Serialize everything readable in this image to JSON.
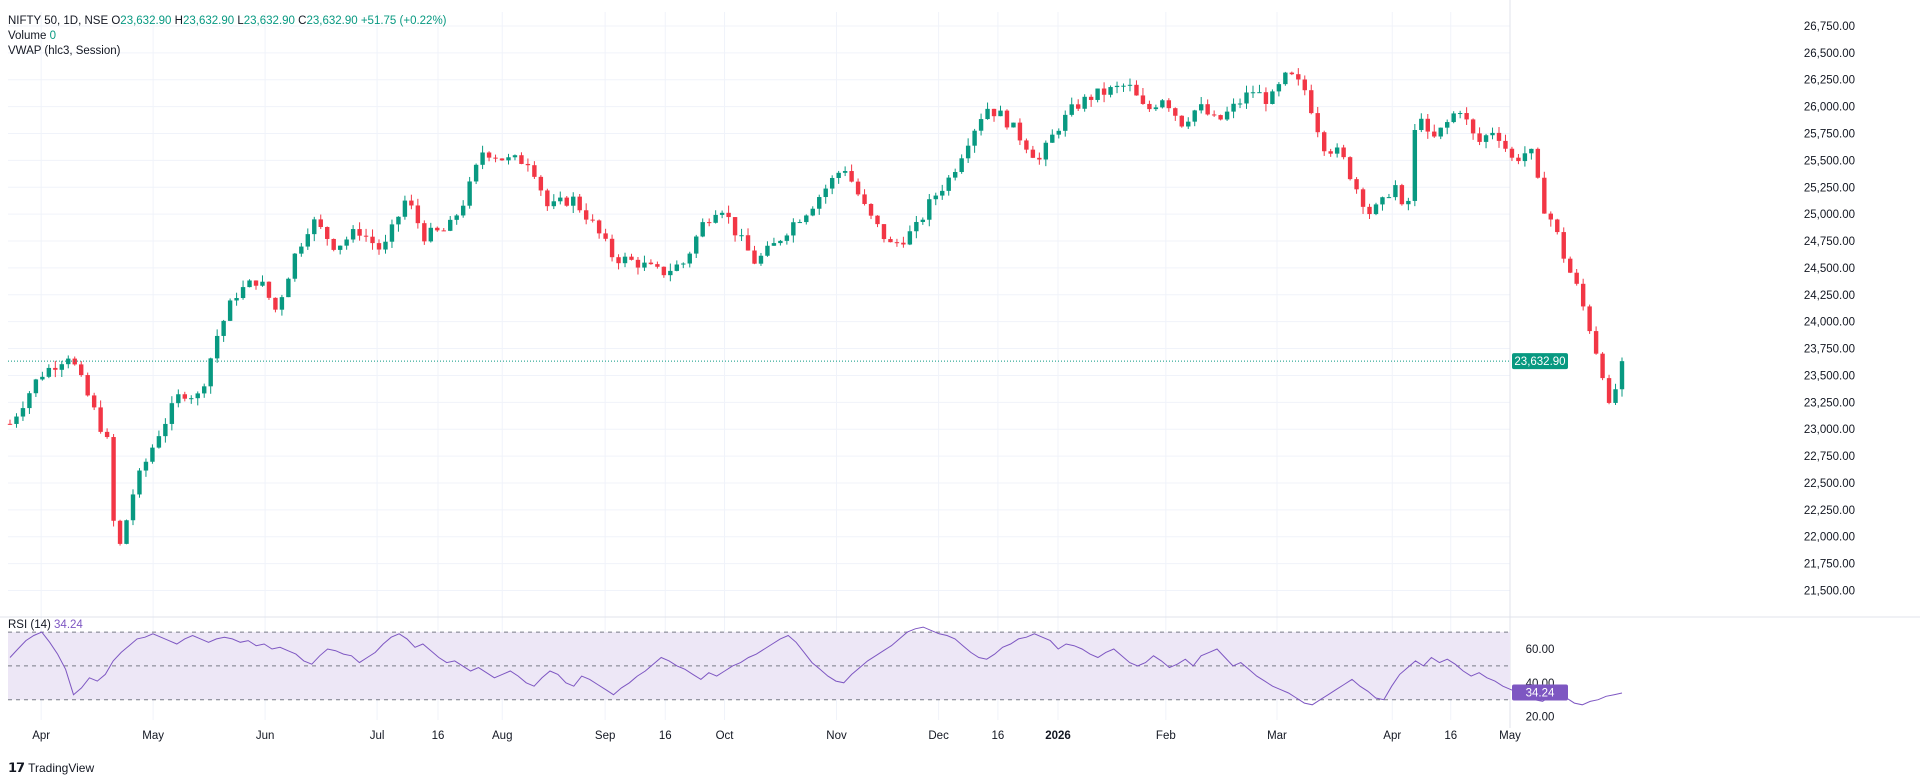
{
  "header": {
    "symbol": "NIFTY 50, 1D, NSE",
    "open_label": "O",
    "open": "23,632.90",
    "high_label": "H",
    "high": "23,632.90",
    "low_label": "L",
    "low": "23,632.90",
    "close_label": "C",
    "close": "23,632.90",
    "change": "+51.75 (+0.22%)",
    "volume_label": "Volume",
    "volume": "0",
    "vwap_label": "VWAP (hlc3, Session)"
  },
  "rsi_label": {
    "name": "RSI (14)",
    "value": "34.24"
  },
  "price_badge": "23,632.90",
  "rsi_badge": "34.24",
  "brand": "TradingView",
  "colors": {
    "up": "#089981",
    "down": "#f23645",
    "rsi": "#7e57c2",
    "rsi_band": "#ede7f6",
    "grid": "#f0f3fa"
  },
  "chart_data": [
    {
      "type": "candlestick",
      "title": "NIFTY 50, 1D, NSE",
      "yaxis_ticks": [
        "21,500.00",
        "21,750.00",
        "22,000.00",
        "22,250.00",
        "22,500.00",
        "22,750.00",
        "23,000.00",
        "23,250.00",
        "23,500.00",
        "23,750.00",
        "24,000.00",
        "24,250.00",
        "24,500.00",
        "24,750.00",
        "25,000.00",
        "25,250.00",
        "25,500.00",
        "25,750.00",
        "26,000.00",
        "26,250.00",
        "26,500.00",
        "26,750.00"
      ],
      "ylim": [
        21300,
        26880
      ],
      "xaxis_ticks": [
        "Apr",
        "May",
        "Jun",
        "Jul",
        "16",
        "Aug",
        "Sep",
        "16",
        "Oct",
        "Nov",
        "Dec",
        "16",
        "2026",
        "Feb",
        "Mar",
        "Apr",
        "16",
        "May"
      ],
      "last_price": 23632.9,
      "close_path": [
        {
          "x": 0,
          "y": 23050
        },
        {
          "x": 10,
          "y": 23500
        },
        {
          "x": 20,
          "y": 23700
        },
        {
          "x": 28,
          "y": 23200
        },
        {
          "x": 33,
          "y": 22870
        },
        {
          "x": 36,
          "y": 21780
        },
        {
          "x": 42,
          "y": 22450
        },
        {
          "x": 50,
          "y": 22950
        },
        {
          "x": 58,
          "y": 23350
        },
        {
          "x": 64,
          "y": 23300
        },
        {
          "x": 70,
          "y": 23870
        },
        {
          "x": 76,
          "y": 24250
        },
        {
          "x": 84,
          "y": 24400
        },
        {
          "x": 90,
          "y": 24100
        },
        {
          "x": 96,
          "y": 24600
        },
        {
          "x": 102,
          "y": 24950
        },
        {
          "x": 110,
          "y": 24700
        },
        {
          "x": 118,
          "y": 24850
        },
        {
          "x": 126,
          "y": 24650
        },
        {
          "x": 134,
          "y": 25150
        },
        {
          "x": 140,
          "y": 24800
        },
        {
          "x": 148,
          "y": 24850
        },
        {
          "x": 154,
          "y": 25150
        },
        {
          "x": 160,
          "y": 25600
        },
        {
          "x": 168,
          "y": 25500
        },
        {
          "x": 176,
          "y": 25500
        },
        {
          "x": 182,
          "y": 25050
        },
        {
          "x": 190,
          "y": 25150
        },
        {
          "x": 196,
          "y": 24950
        },
        {
          "x": 204,
          "y": 24600
        },
        {
          "x": 212,
          "y": 24550
        },
        {
          "x": 220,
          "y": 24450
        },
        {
          "x": 228,
          "y": 24550
        },
        {
          "x": 234,
          "y": 24900
        },
        {
          "x": 240,
          "y": 25100
        },
        {
          "x": 246,
          "y": 24800
        },
        {
          "x": 252,
          "y": 24550
        },
        {
          "x": 258,
          "y": 24700
        },
        {
          "x": 264,
          "y": 24900
        },
        {
          "x": 270,
          "y": 25050
        },
        {
          "x": 276,
          "y": 25250
        },
        {
          "x": 282,
          "y": 25450
        },
        {
          "x": 290,
          "y": 25000
        },
        {
          "x": 298,
          "y": 24700
        },
        {
          "x": 306,
          "y": 24850
        },
        {
          "x": 312,
          "y": 25150
        },
        {
          "x": 318,
          "y": 25350
        },
        {
          "x": 324,
          "y": 25700
        },
        {
          "x": 330,
          "y": 26000
        },
        {
          "x": 336,
          "y": 25900
        },
        {
          "x": 342,
          "y": 25700
        },
        {
          "x": 348,
          "y": 25500
        },
        {
          "x": 354,
          "y": 25800
        },
        {
          "x": 360,
          "y": 26000
        },
        {
          "x": 366,
          "y": 26100
        },
        {
          "x": 372,
          "y": 26150
        },
        {
          "x": 378,
          "y": 26200
        },
        {
          "x": 384,
          "y": 25950
        },
        {
          "x": 390,
          "y": 26100
        },
        {
          "x": 396,
          "y": 25850
        },
        {
          "x": 402,
          "y": 26000
        },
        {
          "x": 408,
          "y": 25850
        },
        {
          "x": 414,
          "y": 26000
        },
        {
          "x": 420,
          "y": 26150
        },
        {
          "x": 426,
          "y": 26050
        },
        {
          "x": 432,
          "y": 26300
        },
        {
          "x": 438,
          "y": 26150
        },
        {
          "x": 444,
          "y": 25650
        },
        {
          "x": 450,
          "y": 25550
        },
        {
          "x": 456,
          "y": 25200
        },
        {
          "x": 460,
          "y": 25000
        },
        {
          "x": 464,
          "y": 25100
        },
        {
          "x": 468,
          "y": 25300
        },
        {
          "x": 472,
          "y": 24900
        },
        {
          "x": 476,
          "y": 26050
        },
        {
          "x": 480,
          "y": 25650
        },
        {
          "x": 486,
          "y": 25850
        },
        {
          "x": 490,
          "y": 26000
        },
        {
          "x": 496,
          "y": 25650
        },
        {
          "x": 502,
          "y": 25800
        },
        {
          "x": 508,
          "y": 25500
        },
        {
          "x": 514,
          "y": 25600
        },
        {
          "x": 518,
          "y": 25100
        },
        {
          "x": 522,
          "y": 24900
        },
        {
          "x": 526,
          "y": 24550
        },
        {
          "x": 530,
          "y": 24300
        },
        {
          "x": 534,
          "y": 23950
        },
        {
          "x": 536,
          "y": 23750
        },
        {
          "x": 538,
          "y": 23600
        },
        {
          "x": 541,
          "y": 23130
        },
        {
          "x": 543,
          "y": 23400
        },
        {
          "x": 545,
          "y": 23632.9
        }
      ]
    },
    {
      "type": "line",
      "title": "RSI (14)",
      "yaxis_ticks": [
        "20.00",
        "40.00",
        "60.00"
      ],
      "ylim": [
        18,
        76
      ],
      "bands": [
        30,
        50,
        70
      ],
      "last_value": 34.24,
      "values": [
        55,
        60,
        65,
        68,
        70,
        64,
        57,
        48,
        33,
        37,
        43,
        41,
        45,
        53,
        58,
        62,
        66,
        67,
        69,
        67,
        65,
        63,
        66,
        68,
        66,
        64,
        66,
        67,
        66,
        64,
        65,
        62,
        63,
        60,
        61,
        59,
        57,
        53,
        51,
        56,
        60,
        59,
        57,
        56,
        52,
        55,
        58,
        63,
        67,
        69,
        66,
        61,
        63,
        59,
        55,
        52,
        53,
        50,
        47,
        49,
        46,
        43,
        45,
        47,
        44,
        40,
        38,
        43,
        47,
        45,
        40,
        38,
        44,
        42,
        39,
        36,
        33,
        37,
        40,
        44,
        47,
        51,
        55,
        53,
        50,
        48,
        45,
        42,
        46,
        44,
        47,
        50,
        52,
        55,
        57,
        60,
        63,
        66,
        68,
        64,
        58,
        52,
        48,
        44,
        41,
        40,
        45,
        49,
        53,
        56,
        59,
        62,
        66,
        70,
        72,
        73,
        71,
        69,
        68,
        66,
        62,
        58,
        55,
        54,
        57,
        61,
        63,
        66,
        67,
        69,
        67,
        65,
        60,
        63,
        62,
        60,
        57,
        55,
        58,
        60,
        56,
        52,
        50,
        52,
        56,
        53,
        49,
        51,
        54,
        50,
        56,
        58,
        60,
        55,
        50,
        52,
        48,
        44,
        41,
        38,
        36,
        34,
        31,
        28,
        27,
        30,
        33,
        36,
        39,
        42,
        38,
        35,
        31,
        30,
        38,
        45,
        49,
        53,
        50,
        55,
        52,
        54,
        51,
        47,
        44,
        46,
        43,
        41,
        38,
        36,
        34,
        31,
        30,
        29,
        32,
        33,
        31,
        28,
        27,
        29,
        30,
        32,
        33,
        34
      ]
    }
  ]
}
